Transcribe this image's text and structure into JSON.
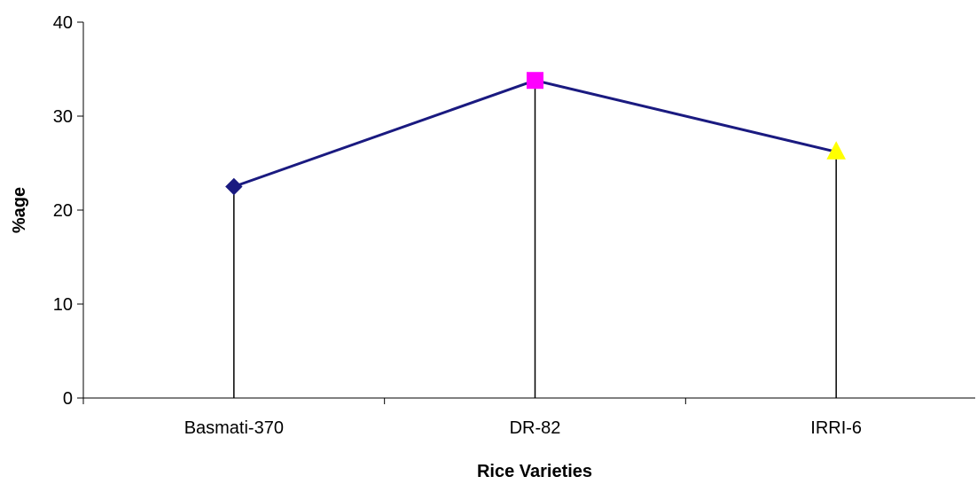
{
  "chart_data": {
    "type": "line",
    "title": "",
    "xlabel": "Rice Varieties",
    "ylabel": "%age",
    "categories": [
      "Basmati-370",
      "DR-82",
      "IRRI-6"
    ],
    "values": [
      22.5,
      33.8,
      26.2
    ],
    "markers": [
      "diamond",
      "square",
      "triangle"
    ],
    "marker_colors": [
      "#1a1a80",
      "#ff00ff",
      "#ffff00"
    ],
    "line_color": "#1a1a80",
    "drop_lines": true,
    "ylim": [
      0,
      40
    ],
    "yticks": [
      0,
      10,
      20,
      30,
      40
    ],
    "grid": false,
    "legend": "none"
  }
}
